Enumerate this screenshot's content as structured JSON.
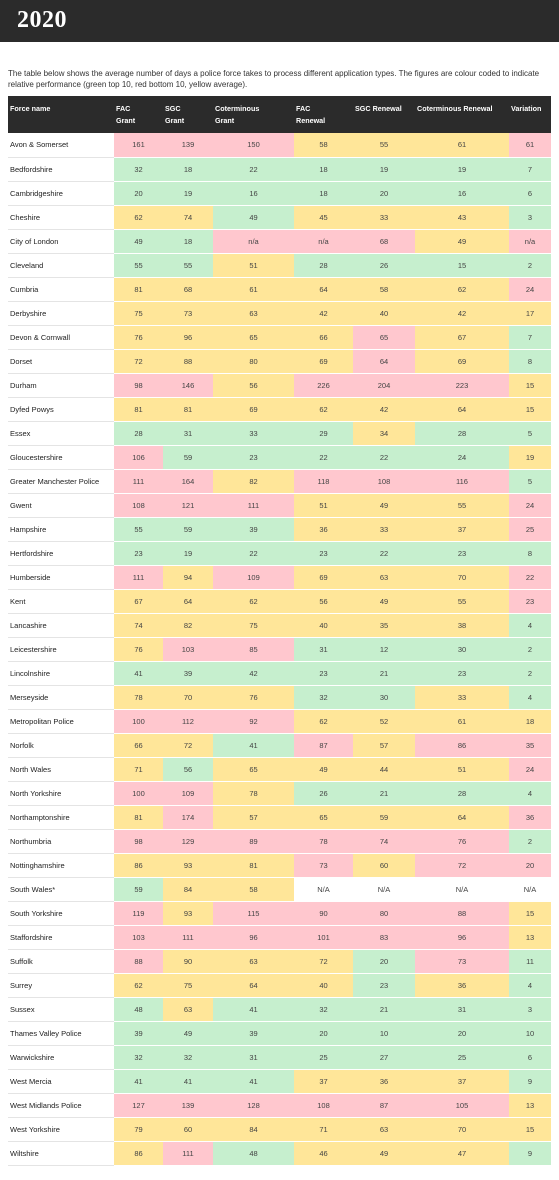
{
  "title": "2020",
  "intro": "The table below shows the average number of days a police force takes to process different application types. The figures are colour coded to indicate relative performance (green top 10, red bottom 10, yellow average).",
  "colors": {
    "green": "#c6efce",
    "red": "#ffc7ce",
    "yellow": "#ffe699",
    "header": "#2b2b2b"
  },
  "columns": [
    [
      "Force name"
    ],
    [
      "FAC",
      "Grant"
    ],
    [
      "SGC",
      "Grant"
    ],
    [
      "Coterminous",
      "Grant"
    ],
    [
      "FAC",
      "Renewal"
    ],
    [
      "SGC Renewal"
    ],
    [
      "Coterminous Renewal"
    ],
    [
      "Variation"
    ]
  ],
  "rows": [
    {
      "name": "Avon & Somerset",
      "cells": [
        [
          "161",
          "r"
        ],
        [
          "139",
          "r"
        ],
        [
          "150",
          "r"
        ],
        [
          "58",
          "y"
        ],
        [
          "55",
          "y"
        ],
        [
          "61",
          "y"
        ],
        [
          "61",
          "r"
        ]
      ]
    },
    {
      "name": "Bedfordshire",
      "cells": [
        [
          "32",
          "g"
        ],
        [
          "18",
          "g"
        ],
        [
          "22",
          "g"
        ],
        [
          "18",
          "g"
        ],
        [
          "19",
          "g"
        ],
        [
          "19",
          "g"
        ],
        [
          "7",
          "g"
        ]
      ]
    },
    {
      "name": "Cambridgeshire",
      "cells": [
        [
          "20",
          "g"
        ],
        [
          "19",
          "g"
        ],
        [
          "16",
          "g"
        ],
        [
          "18",
          "g"
        ],
        [
          "20",
          "g"
        ],
        [
          "16",
          "g"
        ],
        [
          "6",
          "g"
        ]
      ]
    },
    {
      "name": "Cheshire",
      "cells": [
        [
          "62",
          "y"
        ],
        [
          "74",
          "y"
        ],
        [
          "49",
          "g"
        ],
        [
          "45",
          "y"
        ],
        [
          "33",
          "y"
        ],
        [
          "43",
          "y"
        ],
        [
          "3",
          "g"
        ]
      ]
    },
    {
      "name": "City of London",
      "cells": [
        [
          "49",
          "g"
        ],
        [
          "18",
          "g"
        ],
        [
          "n/a",
          "r"
        ],
        [
          "n/a",
          "r"
        ],
        [
          "68",
          "r"
        ],
        [
          "49",
          "y"
        ],
        [
          "n/a",
          "r"
        ]
      ]
    },
    {
      "name": "Cleveland",
      "cells": [
        [
          "55",
          "g"
        ],
        [
          "55",
          "g"
        ],
        [
          "51",
          "y"
        ],
        [
          "28",
          "g"
        ],
        [
          "26",
          "g"
        ],
        [
          "15",
          "g"
        ],
        [
          "2",
          "g"
        ]
      ]
    },
    {
      "name": "Cumbria",
      "cells": [
        [
          "81",
          "y"
        ],
        [
          "68",
          "y"
        ],
        [
          "61",
          "y"
        ],
        [
          "64",
          "y"
        ],
        [
          "58",
          "y"
        ],
        [
          "62",
          "y"
        ],
        [
          "24",
          "r"
        ]
      ]
    },
    {
      "name": "Derbyshire",
      "cells": [
        [
          "75",
          "y"
        ],
        [
          "73",
          "y"
        ],
        [
          "63",
          "y"
        ],
        [
          "42",
          "y"
        ],
        [
          "40",
          "y"
        ],
        [
          "42",
          "y"
        ],
        [
          "17",
          "y"
        ]
      ]
    },
    {
      "name": "Devon & Cornwall",
      "cells": [
        [
          "76",
          "y"
        ],
        [
          "96",
          "y"
        ],
        [
          "65",
          "y"
        ],
        [
          "66",
          "y"
        ],
        [
          "65",
          "r"
        ],
        [
          "67",
          "y"
        ],
        [
          "7",
          "g"
        ]
      ]
    },
    {
      "name": "Dorset",
      "cells": [
        [
          "72",
          "y"
        ],
        [
          "88",
          "y"
        ],
        [
          "80",
          "y"
        ],
        [
          "69",
          "y"
        ],
        [
          "64",
          "r"
        ],
        [
          "69",
          "y"
        ],
        [
          "8",
          "g"
        ]
      ]
    },
    {
      "name": "Durham",
      "cells": [
        [
          "98",
          "r"
        ],
        [
          "146",
          "r"
        ],
        [
          "56",
          "y"
        ],
        [
          "226",
          "r"
        ],
        [
          "204",
          "r"
        ],
        [
          "223",
          "r"
        ],
        [
          "15",
          "y"
        ]
      ]
    },
    {
      "name": "Dyfed Powys",
      "cells": [
        [
          "81",
          "y"
        ],
        [
          "81",
          "y"
        ],
        [
          "69",
          "y"
        ],
        [
          "62",
          "y"
        ],
        [
          "42",
          "y"
        ],
        [
          "64",
          "y"
        ],
        [
          "15",
          "y"
        ]
      ]
    },
    {
      "name": "Essex",
      "cells": [
        [
          "28",
          "g"
        ],
        [
          "31",
          "g"
        ],
        [
          "33",
          "g"
        ],
        [
          "29",
          "g"
        ],
        [
          "34",
          "y"
        ],
        [
          "28",
          "g"
        ],
        [
          "5",
          "g"
        ]
      ]
    },
    {
      "name": "Gloucestershire",
      "cells": [
        [
          "106",
          "r"
        ],
        [
          "59",
          "g"
        ],
        [
          "23",
          "g"
        ],
        [
          "22",
          "g"
        ],
        [
          "22",
          "g"
        ],
        [
          "24",
          "g"
        ],
        [
          "19",
          "y"
        ]
      ]
    },
    {
      "name": "Greater Manchester Police",
      "cells": [
        [
          "111",
          "r"
        ],
        [
          "164",
          "r"
        ],
        [
          "82",
          "y"
        ],
        [
          "118",
          "r"
        ],
        [
          "108",
          "r"
        ],
        [
          "116",
          "r"
        ],
        [
          "5",
          "g"
        ]
      ]
    },
    {
      "name": "Gwent",
      "cells": [
        [
          "108",
          "r"
        ],
        [
          "121",
          "r"
        ],
        [
          "111",
          "r"
        ],
        [
          "51",
          "y"
        ],
        [
          "49",
          "y"
        ],
        [
          "55",
          "y"
        ],
        [
          "24",
          "r"
        ]
      ]
    },
    {
      "name": "Hampshire",
      "cells": [
        [
          "55",
          "g"
        ],
        [
          "59",
          "g"
        ],
        [
          "39",
          "g"
        ],
        [
          "36",
          "y"
        ],
        [
          "33",
          "y"
        ],
        [
          "37",
          "y"
        ],
        [
          "25",
          "r"
        ]
      ]
    },
    {
      "name": "Hertfordshire",
      "cells": [
        [
          "23",
          "g"
        ],
        [
          "19",
          "g"
        ],
        [
          "22",
          "g"
        ],
        [
          "23",
          "g"
        ],
        [
          "22",
          "g"
        ],
        [
          "23",
          "g"
        ],
        [
          "8",
          "g"
        ]
      ]
    },
    {
      "name": "Humberside",
      "cells": [
        [
          "111",
          "r"
        ],
        [
          "94",
          "y"
        ],
        [
          "109",
          "r"
        ],
        [
          "69",
          "y"
        ],
        [
          "63",
          "y"
        ],
        [
          "70",
          "y"
        ],
        [
          "22",
          "r"
        ]
      ]
    },
    {
      "name": "Kent",
      "cells": [
        [
          "67",
          "y"
        ],
        [
          "64",
          "y"
        ],
        [
          "62",
          "y"
        ],
        [
          "56",
          "y"
        ],
        [
          "49",
          "y"
        ],
        [
          "55",
          "y"
        ],
        [
          "23",
          "r"
        ]
      ]
    },
    {
      "name": "Lancashire",
      "cells": [
        [
          "74",
          "y"
        ],
        [
          "82",
          "y"
        ],
        [
          "75",
          "y"
        ],
        [
          "40",
          "y"
        ],
        [
          "35",
          "y"
        ],
        [
          "38",
          "y"
        ],
        [
          "4",
          "g"
        ]
      ]
    },
    {
      "name": "Leicestershire",
      "cells": [
        [
          "76",
          "y"
        ],
        [
          "103",
          "r"
        ],
        [
          "85",
          "r"
        ],
        [
          "31",
          "g"
        ],
        [
          "12",
          "g"
        ],
        [
          "30",
          "g"
        ],
        [
          "2",
          "g"
        ]
      ]
    },
    {
      "name": "Lincolnshire",
      "cells": [
        [
          "41",
          "g"
        ],
        [
          "39",
          "g"
        ],
        [
          "42",
          "g"
        ],
        [
          "23",
          "g"
        ],
        [
          "21",
          "g"
        ],
        [
          "23",
          "g"
        ],
        [
          "2",
          "g"
        ]
      ]
    },
    {
      "name": "Merseyside",
      "cells": [
        [
          "78",
          "y"
        ],
        [
          "70",
          "y"
        ],
        [
          "76",
          "y"
        ],
        [
          "32",
          "g"
        ],
        [
          "30",
          "g"
        ],
        [
          "33",
          "y"
        ],
        [
          "4",
          "g"
        ]
      ]
    },
    {
      "name": "Metropolitan Police",
      "cells": [
        [
          "100",
          "r"
        ],
        [
          "112",
          "r"
        ],
        [
          "92",
          "r"
        ],
        [
          "62",
          "y"
        ],
        [
          "52",
          "y"
        ],
        [
          "61",
          "y"
        ],
        [
          "18",
          "y"
        ]
      ]
    },
    {
      "name": "Norfolk",
      "cells": [
        [
          "66",
          "y"
        ],
        [
          "72",
          "y"
        ],
        [
          "41",
          "g"
        ],
        [
          "87",
          "r"
        ],
        [
          "57",
          "y"
        ],
        [
          "86",
          "r"
        ],
        [
          "35",
          "r"
        ]
      ]
    },
    {
      "name": "North Wales",
      "cells": [
        [
          "71",
          "y"
        ],
        [
          "56",
          "g"
        ],
        [
          "65",
          "y"
        ],
        [
          "49",
          "y"
        ],
        [
          "44",
          "y"
        ],
        [
          "51",
          "y"
        ],
        [
          "24",
          "r"
        ]
      ]
    },
    {
      "name": "North Yorkshire",
      "cells": [
        [
          "100",
          "r"
        ],
        [
          "109",
          "r"
        ],
        [
          "78",
          "y"
        ],
        [
          "26",
          "g"
        ],
        [
          "21",
          "g"
        ],
        [
          "28",
          "g"
        ],
        [
          "4",
          "g"
        ]
      ]
    },
    {
      "name": "Northamptonshire",
      "cells": [
        [
          "81",
          "y"
        ],
        [
          "174",
          "r"
        ],
        [
          "57",
          "y"
        ],
        [
          "65",
          "y"
        ],
        [
          "59",
          "y"
        ],
        [
          "64",
          "y"
        ],
        [
          "36",
          "r"
        ]
      ]
    },
    {
      "name": "Northumbria",
      "cells": [
        [
          "98",
          "r"
        ],
        [
          "129",
          "r"
        ],
        [
          "89",
          "r"
        ],
        [
          "78",
          "r"
        ],
        [
          "74",
          "r"
        ],
        [
          "76",
          "r"
        ],
        [
          "2",
          "g"
        ]
      ]
    },
    {
      "name": "Nottinghamshire",
      "cells": [
        [
          "86",
          "y"
        ],
        [
          "93",
          "y"
        ],
        [
          "81",
          "y"
        ],
        [
          "73",
          "r"
        ],
        [
          "60",
          "y"
        ],
        [
          "72",
          "r"
        ],
        [
          "20",
          "r"
        ]
      ]
    },
    {
      "name": "South Wales*",
      "cells": [
        [
          "59",
          "g"
        ],
        [
          "84",
          "y"
        ],
        [
          "58",
          "y"
        ],
        [
          "N/A",
          "w"
        ],
        [
          "N/A",
          "w"
        ],
        [
          "N/A",
          "w"
        ],
        [
          "N/A",
          "w"
        ]
      ]
    },
    {
      "name": "South Yorkshire",
      "cells": [
        [
          "119",
          "r"
        ],
        [
          "93",
          "y"
        ],
        [
          "115",
          "r"
        ],
        [
          "90",
          "r"
        ],
        [
          "80",
          "r"
        ],
        [
          "88",
          "r"
        ],
        [
          "15",
          "y"
        ]
      ]
    },
    {
      "name": "Staffordshire",
      "cells": [
        [
          "103",
          "r"
        ],
        [
          "111",
          "r"
        ],
        [
          "96",
          "r"
        ],
        [
          "101",
          "r"
        ],
        [
          "83",
          "r"
        ],
        [
          "96",
          "r"
        ],
        [
          "13",
          "y"
        ]
      ]
    },
    {
      "name": "Suffolk",
      "cells": [
        [
          "88",
          "r"
        ],
        [
          "90",
          "y"
        ],
        [
          "63",
          "y"
        ],
        [
          "72",
          "y"
        ],
        [
          "20",
          "g"
        ],
        [
          "73",
          "r"
        ],
        [
          "11",
          "g"
        ]
      ]
    },
    {
      "name": "Surrey",
      "cells": [
        [
          "62",
          "y"
        ],
        [
          "75",
          "y"
        ],
        [
          "64",
          "y"
        ],
        [
          "40",
          "y"
        ],
        [
          "23",
          "g"
        ],
        [
          "36",
          "y"
        ],
        [
          "4",
          "g"
        ]
      ]
    },
    {
      "name": "Sussex",
      "cells": [
        [
          "48",
          "g"
        ],
        [
          "63",
          "y"
        ],
        [
          "41",
          "g"
        ],
        [
          "32",
          "g"
        ],
        [
          "21",
          "g"
        ],
        [
          "31",
          "g"
        ],
        [
          "3",
          "g"
        ]
      ]
    },
    {
      "name": "Thames Valley Police",
      "cells": [
        [
          "39",
          "g"
        ],
        [
          "49",
          "g"
        ],
        [
          "39",
          "g"
        ],
        [
          "20",
          "g"
        ],
        [
          "10",
          "g"
        ],
        [
          "20",
          "g"
        ],
        [
          "10",
          "g"
        ]
      ]
    },
    {
      "name": "Warwickshire",
      "cells": [
        [
          "32",
          "g"
        ],
        [
          "32",
          "g"
        ],
        [
          "31",
          "g"
        ],
        [
          "25",
          "g"
        ],
        [
          "27",
          "g"
        ],
        [
          "25",
          "g"
        ],
        [
          "6",
          "g"
        ]
      ]
    },
    {
      "name": "West Mercia",
      "cells": [
        [
          "41",
          "g"
        ],
        [
          "41",
          "g"
        ],
        [
          "41",
          "g"
        ],
        [
          "37",
          "y"
        ],
        [
          "36",
          "y"
        ],
        [
          "37",
          "y"
        ],
        [
          "9",
          "g"
        ]
      ]
    },
    {
      "name": "West Midlands Police",
      "cells": [
        [
          "127",
          "r"
        ],
        [
          "139",
          "r"
        ],
        [
          "128",
          "r"
        ],
        [
          "108",
          "r"
        ],
        [
          "87",
          "r"
        ],
        [
          "105",
          "r"
        ],
        [
          "13",
          "y"
        ]
      ]
    },
    {
      "name": "West Yorkshire",
      "cells": [
        [
          "79",
          "y"
        ],
        [
          "60",
          "y"
        ],
        [
          "84",
          "y"
        ],
        [
          "71",
          "y"
        ],
        [
          "63",
          "y"
        ],
        [
          "70",
          "y"
        ],
        [
          "15",
          "y"
        ]
      ]
    },
    {
      "name": "Wiltshire",
      "cells": [
        [
          "86",
          "y"
        ],
        [
          "111",
          "r"
        ],
        [
          "48",
          "g"
        ],
        [
          "46",
          "y"
        ],
        [
          "49",
          "y"
        ],
        [
          "47",
          "y"
        ],
        [
          "9",
          "g"
        ]
      ]
    }
  ]
}
